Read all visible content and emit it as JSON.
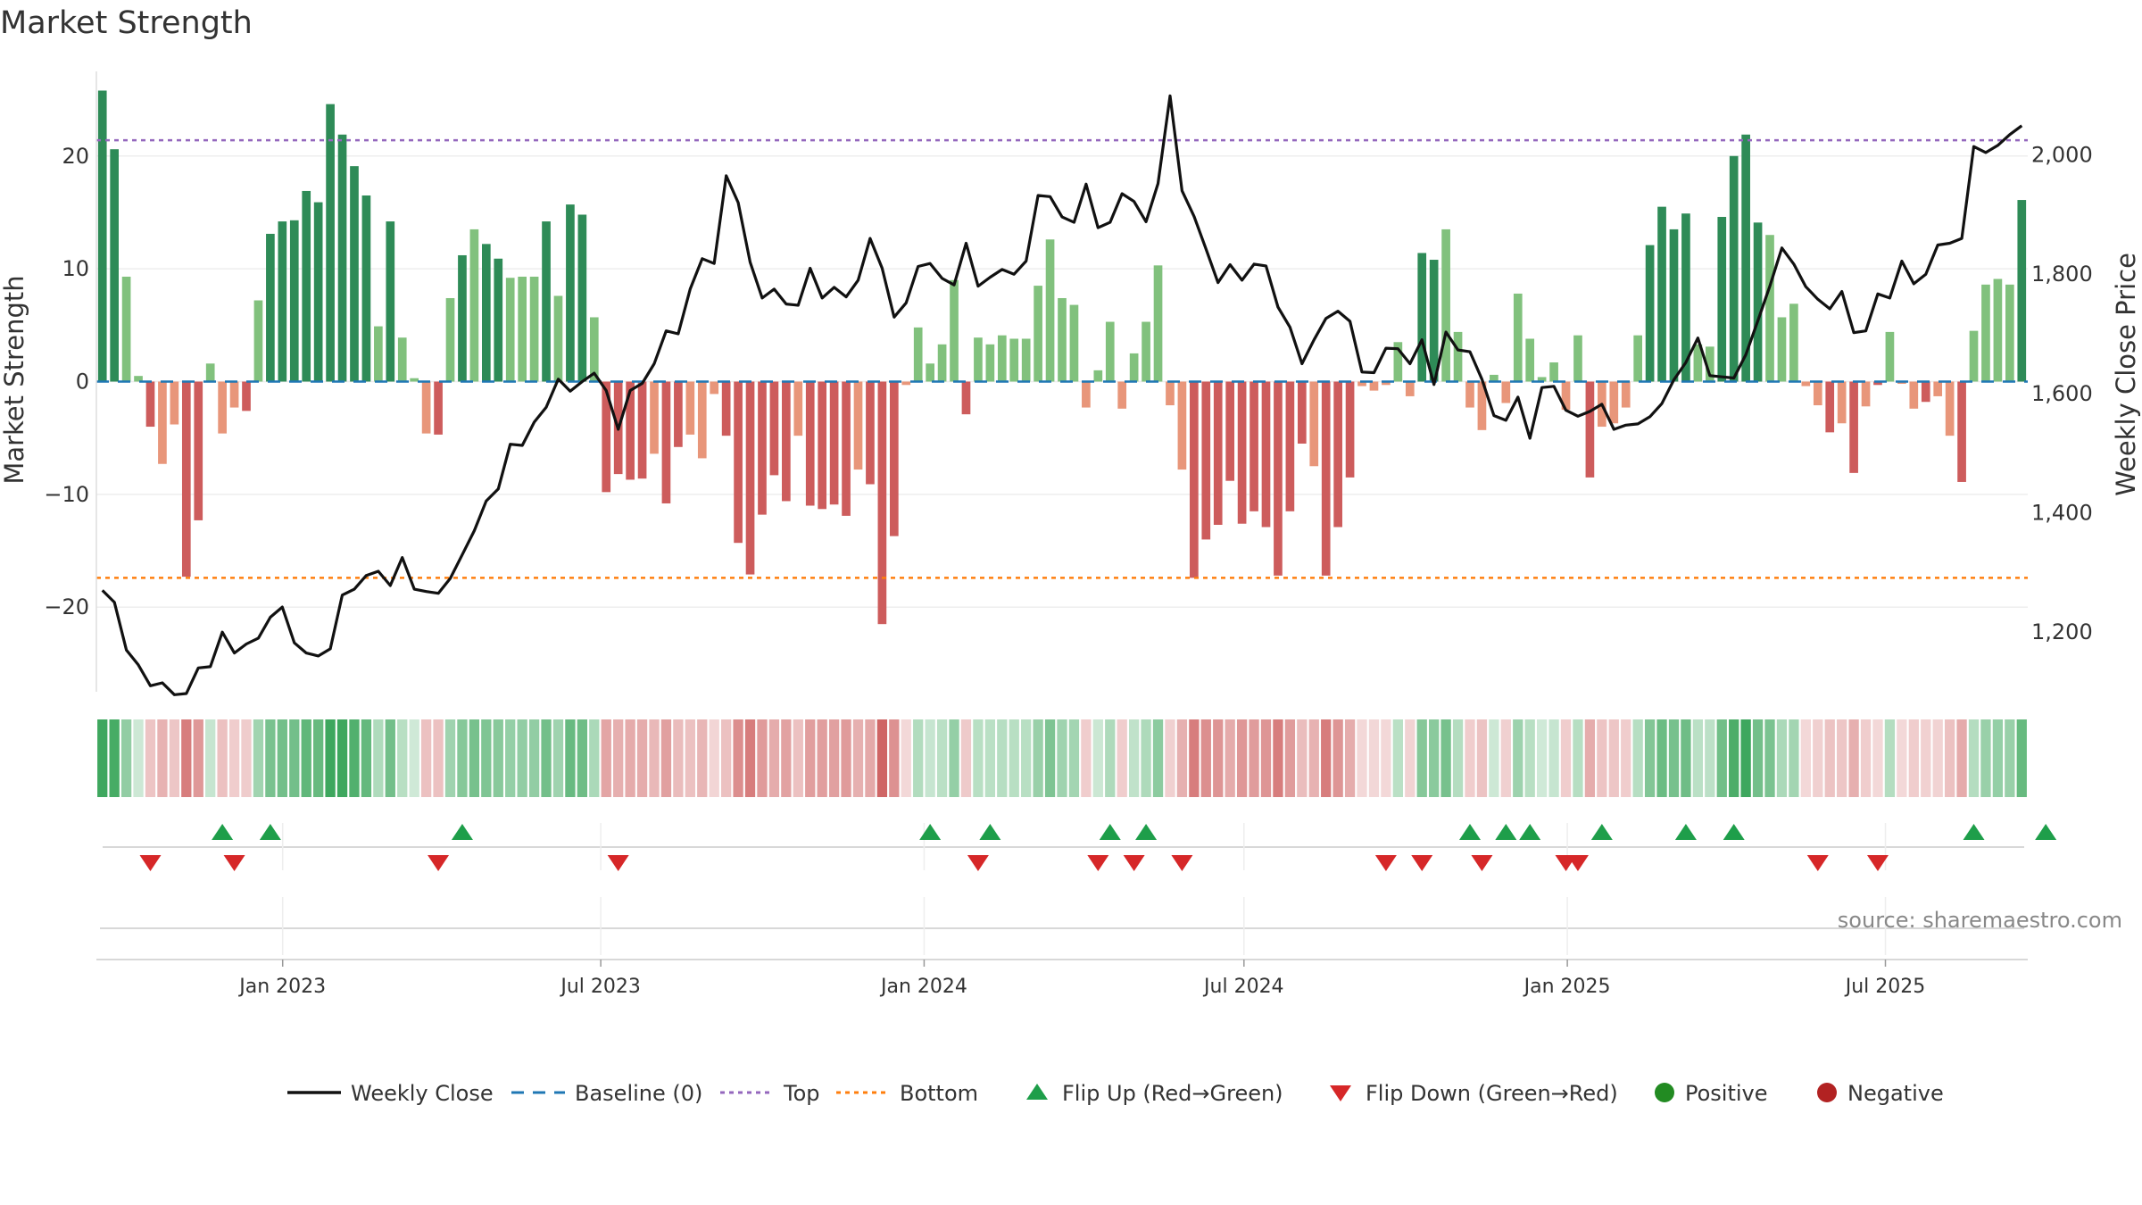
{
  "chart_data": {
    "type": "bar",
    "title": "Market Strength",
    "ylabel_left": "Market Strength",
    "ylabel_right": "Weekly Close Price",
    "ylim_left": [
      -27.5,
      27.5
    ],
    "ylim_right": [
      1100,
      2140
    ],
    "yticks_left": [
      -20,
      -10,
      0,
      10,
      20
    ],
    "yticks_left_labels": [
      "−20",
      "−10",
      "0",
      "10",
      "20"
    ],
    "yticks_right": [
      1200,
      1400,
      1600,
      1800,
      2000
    ],
    "yticks_right_labels": [
      "1,200",
      "1,400",
      "1,600",
      "1,800",
      "2,000"
    ],
    "top_line": 21.4,
    "bottom_line": -17.4,
    "x_start": "2022-09-17",
    "x_end": "2025-09-20",
    "x_tick_labels": [
      {
        "date": "2023-01-01",
        "label": "Jan 2023"
      },
      {
        "date": "2023-07-01",
        "label": "Jul 2023"
      },
      {
        "date": "2024-01-01",
        "label": "Jan 2024"
      },
      {
        "date": "2024-07-01",
        "label": "Jul 2024"
      },
      {
        "date": "2025-01-01",
        "label": "Jan 2025"
      },
      {
        "date": "2025-07-01",
        "label": "Jul 2025"
      }
    ],
    "strength": [
      25.8,
      20.6,
      9.3,
      0.5,
      -4,
      -7.3,
      -3.8,
      -17.3,
      -12.3,
      1.6,
      -4.6,
      -2.3,
      -2.6,
      7.2,
      13.1,
      14.2,
      14.3,
      16.9,
      15.9,
      24.6,
      21.9,
      19.1,
      16.5,
      4.9,
      14.2,
      3.9,
      0.3,
      -4.6,
      -4.7,
      7.4,
      11.2,
      13.5,
      12.2,
      10.9,
      9.2,
      9.3,
      9.3,
      14.2,
      7.6,
      15.7,
      14.8,
      5.7,
      -9.8,
      -8.2,
      -8.7,
      -8.6,
      -6.4,
      -10.8,
      -5.8,
      -4.7,
      -6.8,
      -1.1,
      -4.8,
      -14.3,
      -17.1,
      -11.8,
      -8.3,
      -10.6,
      -4.8,
      -11,
      -11.3,
      -10.9,
      -11.9,
      -7.8,
      -9.1,
      -21.5,
      -13.7,
      -0.3,
      4.8,
      1.6,
      3.3,
      9,
      -2.9,
      3.9,
      3.3,
      4.1,
      3.8,
      3.8,
      8.5,
      12.6,
      7.4,
      6.8,
      -2.3,
      1,
      5.3,
      -2.4,
      2.5,
      5.3,
      10.3,
      -2.1,
      -7.8,
      -17.4,
      -14,
      -12.7,
      -8.8,
      -12.6,
      -11.5,
      -12.9,
      -17.2,
      -11.5,
      -5.5,
      -7.5,
      -17.2,
      -12.9,
      -8.5,
      -0.4,
      -0.8,
      -0.3,
      3.5,
      -1.3,
      11.4,
      10.8,
      13.5,
      4.4,
      -2.3,
      -4.3,
      0.6,
      -1.9,
      7.8,
      3.8,
      0.4,
      1.7,
      -2.5,
      4.1,
      -8.5,
      -4,
      -3.7,
      -2.3,
      4.1,
      12.1,
      15.5,
      13.5,
      14.9,
      3.3,
      3.1,
      14.6,
      20,
      21.9,
      14.1,
      13,
      5.7,
      6.9,
      -0.4,
      -2.1,
      -4.5,
      -3.7,
      -8.1,
      -2.2,
      -0.3,
      4.4,
      -0.2,
      -2.4,
      -1.8,
      -1.3,
      -4.8,
      -8.9,
      4.5,
      8.6,
      9.1,
      8.6,
      16.1
    ],
    "close": [
      1270,
      1250,
      1170,
      1145,
      1110,
      1115,
      1095,
      1097,
      1140,
      1142,
      1200,
      1165,
      1180,
      1190,
      1225,
      1242,
      1182,
      1165,
      1160,
      1172,
      1262,
      1272,
      1295,
      1302,
      1278,
      1325,
      1272,
      1268,
      1265,
      1290,
      1330,
      1370,
      1420,
      1440,
      1515,
      1513,
      1552,
      1577,
      1624,
      1604,
      1620,
      1634,
      1605,
      1540,
      1605,
      1617,
      1650,
      1705,
      1700,
      1775,
      1826,
      1818,
      1965,
      1920,
      1820,
      1760,
      1775,
      1750,
      1748,
      1810,
      1760,
      1778,
      1762,
      1790,
      1860,
      1810,
      1728,
      1752,
      1813,
      1818,
      1793,
      1782,
      1852,
      1780,
      1795,
      1808,
      1800,
      1822,
      1932,
      1930,
      1896,
      1887,
      1951,
      1878,
      1887,
      1935,
      1922,
      1888,
      1952,
      2099,
      1940,
      1897,
      1842,
      1786,
      1816,
      1790,
      1817,
      1814,
      1745,
      1711,
      1650,
      1690,
      1726,
      1738,
      1721,
      1636,
      1635,
      1676,
      1675,
      1650,
      1690,
      1615,
      1703,
      1673,
      1670,
      1624,
      1563,
      1555,
      1594,
      1525,
      1610,
      1612,
      1572,
      1562,
      1570,
      1582,
      1540,
      1547,
      1549,
      1561,
      1583,
      1623,
      1652,
      1693,
      1630,
      1628,
      1626,
      1665,
      1722,
      1780,
      1844,
      1817,
      1779,
      1758,
      1742,
      1771,
      1702,
      1705,
      1767,
      1760,
      1822,
      1784,
      1800,
      1849,
      1852,
      1860,
      2014,
      2004,
      2016,
      2034,
      2049
    ],
    "heat_strip": "per-week strength colour band (green = positive, red = negative)",
    "flip_up_weeks": [
      10,
      14,
      30,
      69,
      74,
      84,
      87,
      114,
      117,
      119,
      125,
      132,
      136,
      156,
      162
    ],
    "flip_down_weeks": [
      4,
      11,
      28,
      43,
      73,
      83,
      86,
      90,
      107,
      110,
      115,
      122,
      123,
      143,
      148
    ],
    "colors": {
      "strong_pos": "#2e8b57",
      "weak_pos": "#81c17d",
      "strong_neg": "#cd5c5c",
      "weak_neg": "#e8967a",
      "close_line": "#111111",
      "baseline": "#1f77b4",
      "top": "#9467bd",
      "bottom": "#ff7f0e",
      "flip_up": "#1e9e4a",
      "flip_down": "#d62728",
      "positive": "#228b22",
      "negative": "#b22222"
    },
    "legend": [
      {
        "key": "close",
        "label": "Weekly Close"
      },
      {
        "key": "baseline",
        "label": "Baseline (0)"
      },
      {
        "key": "top",
        "label": "Top"
      },
      {
        "key": "bottom",
        "label": "Bottom"
      },
      {
        "key": "flip_up",
        "label": "Flip Up (Red→Green)"
      },
      {
        "key": "flip_down",
        "label": "Flip Down (Green→Red)"
      },
      {
        "key": "positive",
        "label": "Positive"
      },
      {
        "key": "negative",
        "label": "Negative"
      }
    ],
    "legend_placement": "bottom-center",
    "source": "source: sharemaestro.com"
  }
}
